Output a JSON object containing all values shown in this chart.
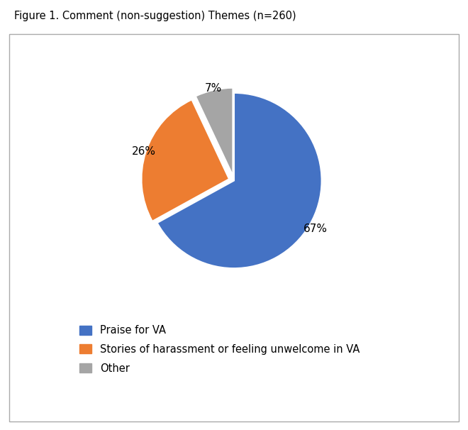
{
  "title": "Figure 1. Comment (non-suggestion) Themes (n=260)",
  "slices": [
    67,
    26,
    7
  ],
  "labels": [
    "Praise for VA",
    "Stories of harassment or feeling unwelcome in VA",
    "Other"
  ],
  "colors": [
    "#4472C4",
    "#ED7D31",
    "#A5A5A5"
  ],
  "pct_labels": [
    "67%",
    "26%",
    "7%"
  ],
  "explode": [
    0,
    0.05,
    0.05
  ],
  "startangle": 90,
  "background_color": "#FFFFFF",
  "border_color": "#AAAAAA",
  "title_fontsize": 10.5,
  "label_fontsize": 11,
  "legend_fontsize": 10.5
}
